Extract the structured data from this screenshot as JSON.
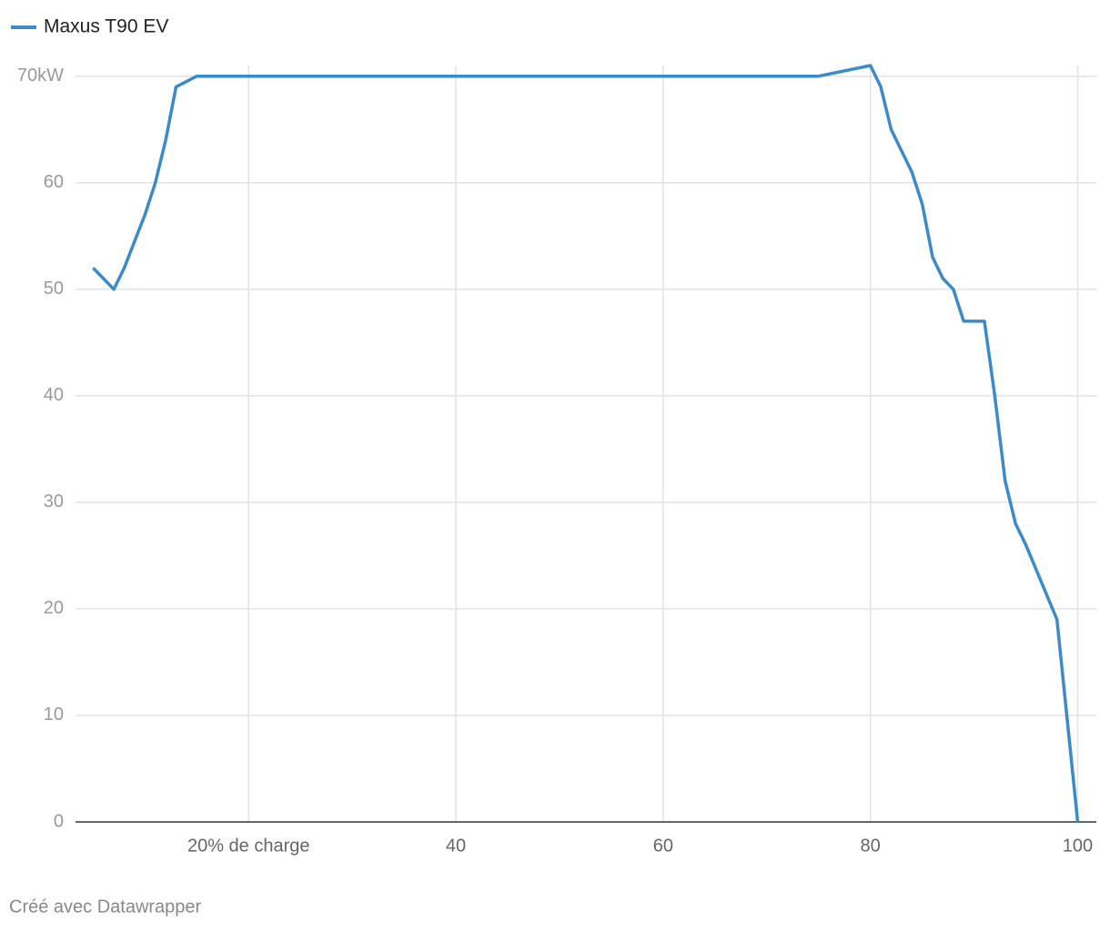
{
  "chart_data": {
    "type": "line",
    "series": [
      {
        "name": "Maxus T90 EV",
        "color": "#3d8ac9",
        "x": [
          5,
          7,
          8,
          10,
          11,
          12,
          13,
          15,
          75,
          80,
          81,
          82,
          84,
          85,
          86,
          87,
          88,
          89,
          91,
          92,
          93,
          94,
          95,
          98,
          100
        ],
        "values": [
          52,
          50,
          52,
          57,
          60,
          64,
          69,
          70,
          70,
          71,
          69,
          65,
          61,
          58,
          53,
          51,
          50,
          47,
          47,
          40,
          32,
          28,
          26,
          19,
          0
        ]
      }
    ],
    "xlim": [
      3.3,
      101.8
    ],
    "xticks": [
      {
        "value": 20,
        "label": "20% de charge"
      },
      40,
      60,
      80,
      100
    ],
    "ylim": [
      0,
      71
    ],
    "yticks": [
      0,
      10,
      20,
      30,
      40,
      50,
      60,
      {
        "value": 70,
        "label": "70kW"
      }
    ],
    "grid": true,
    "legend": "top-left",
    "source": "Créé avec Datawrapper"
  }
}
